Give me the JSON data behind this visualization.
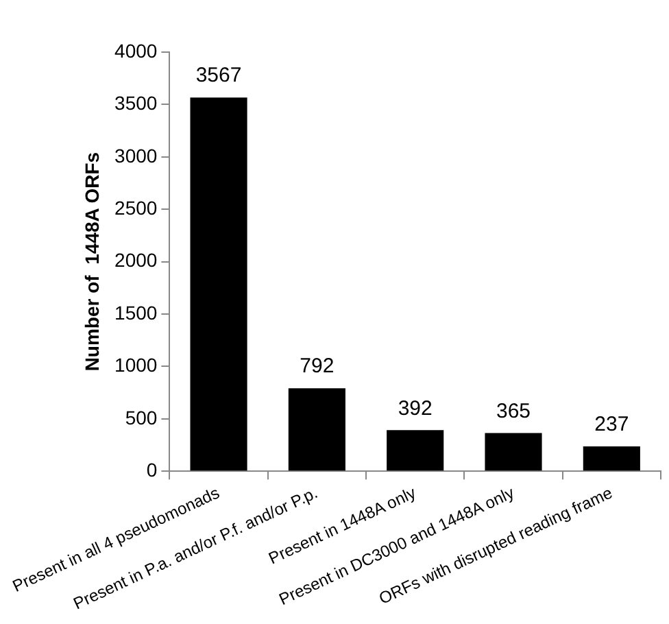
{
  "chart_data": {
    "type": "bar",
    "ylabel": "Number of  1448A ORFs",
    "categories": [
      "Present in all 4 pseudomonads",
      "Present in P.a. and/or P.f. and/or P.p.",
      "Present in 1448A only",
      "Present in DC3000 and 1448A only",
      "ORFs with disrupted reading frame"
    ],
    "values": [
      3567,
      792,
      392,
      365,
      237
    ],
    "color": "#000000",
    "ylim": [
      0,
      4000
    ],
    "yticks": [
      0,
      500,
      1000,
      1500,
      2000,
      2500,
      3000,
      3500,
      4000
    ],
    "grid": false,
    "data_labels": true
  }
}
